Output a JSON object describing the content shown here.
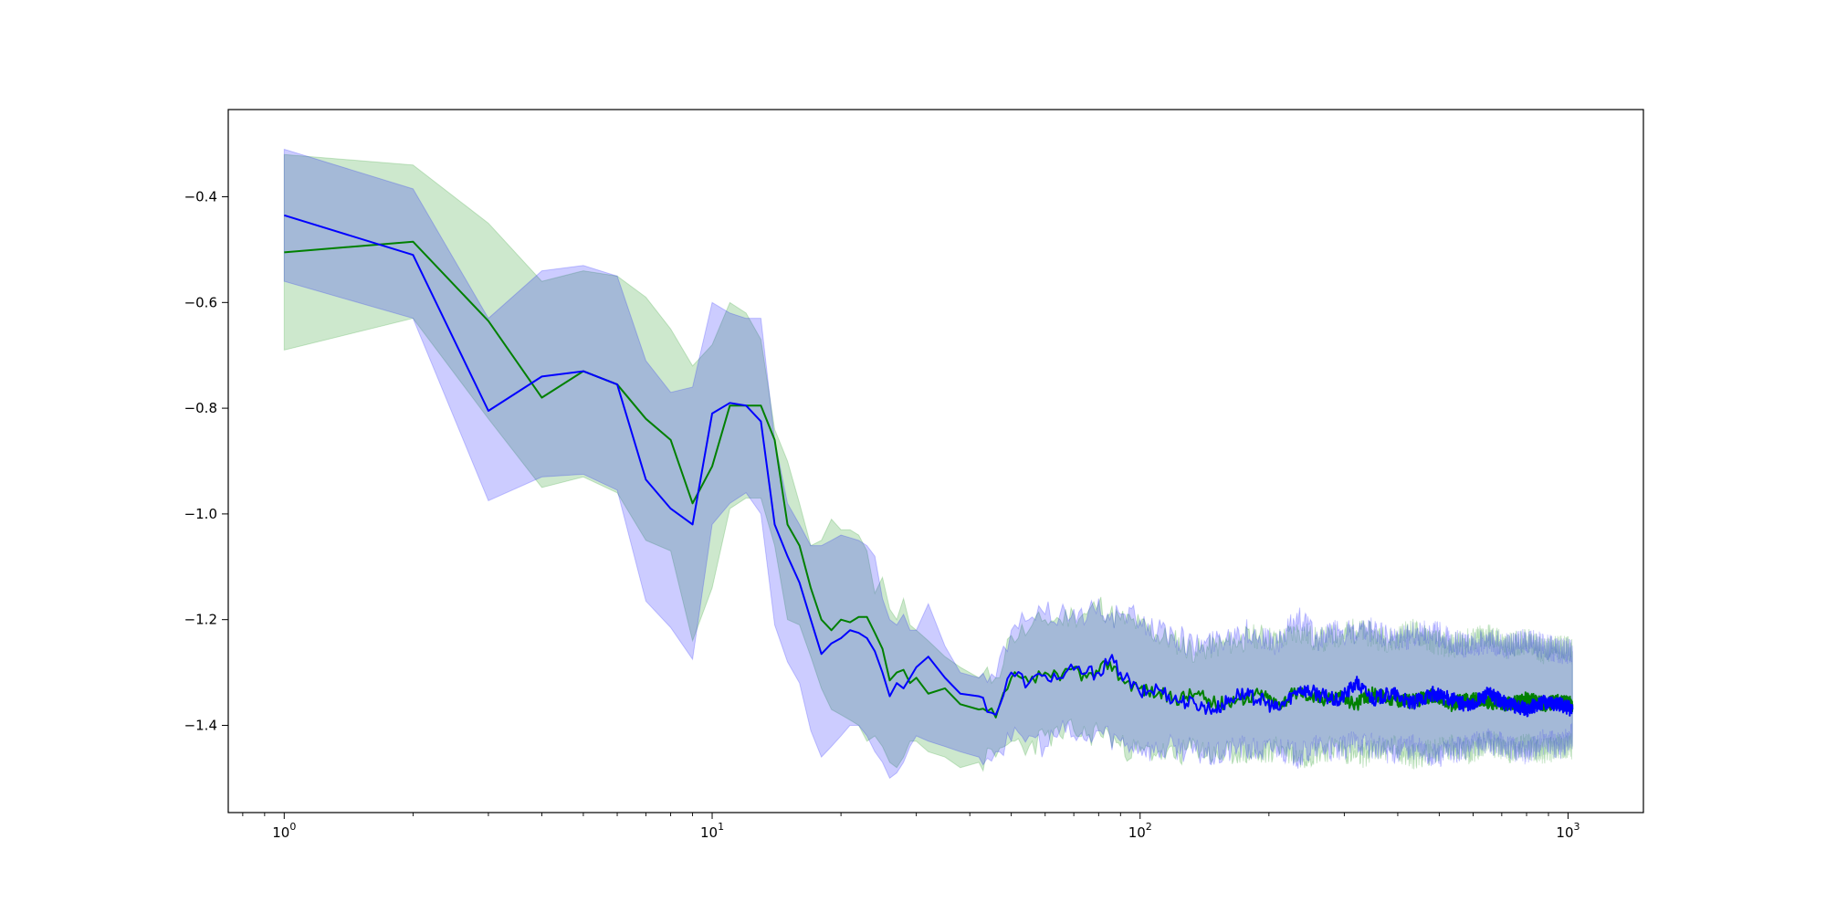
{
  "chart_data": {
    "type": "line",
    "title": "",
    "xlabel": "",
    "ylabel": "",
    "xscale": "log",
    "xlim": [
      0.74,
      1500
    ],
    "ylim": [
      -1.565,
      -0.235
    ],
    "grid": false,
    "legend": "none",
    "x_ticks": [
      {
        "base": "10",
        "exp": "0",
        "value": 1
      },
      {
        "base": "10",
        "exp": "1",
        "value": 10
      },
      {
        "base": "10",
        "exp": "2",
        "value": 100
      },
      {
        "base": "10",
        "exp": "3",
        "value": 1000
      }
    ],
    "y_ticks": [
      {
        "label": "−0.4",
        "value": -0.4
      },
      {
        "label": "−0.6",
        "value": -0.6
      },
      {
        "label": "−0.8",
        "value": -0.8
      },
      {
        "label": "−1.0",
        "value": -1.0
      },
      {
        "label": "−1.2",
        "value": -1.2
      },
      {
        "label": "−1.4",
        "value": -1.4
      }
    ],
    "series": [
      {
        "color": "#008000",
        "band_color": "#2ca02c",
        "band_opacity": 0.24,
        "x": [
          1,
          2,
          3,
          4,
          5,
          6,
          7,
          8,
          9,
          10,
          11,
          12,
          13,
          14,
          15,
          16,
          17,
          18,
          19,
          20,
          21,
          22,
          23,
          24,
          25,
          26,
          27,
          28,
          29,
          30,
          32,
          35,
          38,
          42,
          46,
          50,
          55,
          60,
          65,
          70,
          75,
          80,
          85,
          90,
          100,
          110,
          120,
          135,
          150,
          170,
          190,
          210,
          235,
          260,
          290,
          320,
          350,
          390,
          430,
          480,
          530,
          590,
          650,
          720,
          800,
          880,
          960,
          1024
        ],
        "mean": [
          -0.505,
          -0.485,
          -0.635,
          -0.78,
          -0.73,
          -0.755,
          -0.82,
          -0.86,
          -0.98,
          -0.91,
          -0.795,
          -0.795,
          -0.795,
          -0.86,
          -1.02,
          -1.06,
          -1.14,
          -1.2,
          -1.22,
          -1.2,
          -1.205,
          -1.195,
          -1.195,
          -1.225,
          -1.255,
          -1.315,
          -1.3,
          -1.295,
          -1.32,
          -1.31,
          -1.34,
          -1.33,
          -1.36,
          -1.37,
          -1.385,
          -1.31,
          -1.32,
          -1.3,
          -1.315,
          -1.29,
          -1.31,
          -1.3,
          -1.28,
          -1.31,
          -1.33,
          -1.34,
          -1.35,
          -1.34,
          -1.36,
          -1.35,
          -1.34,
          -1.36,
          -1.335,
          -1.35,
          -1.345,
          -1.36,
          -1.34,
          -1.35,
          -1.355,
          -1.345,
          -1.36,
          -1.35,
          -1.355,
          -1.36,
          -1.35,
          -1.36,
          -1.355,
          -1.36
        ],
        "upper": [
          -0.32,
          -0.34,
          -0.45,
          -0.56,
          -0.54,
          -0.55,
          -0.59,
          -0.65,
          -0.72,
          -0.68,
          -0.6,
          -0.62,
          -0.67,
          -0.84,
          -0.9,
          -0.98,
          -1.06,
          -1.05,
          -1.01,
          -1.03,
          -1.03,
          -1.04,
          -1.07,
          -1.15,
          -1.12,
          -1.18,
          -1.2,
          -1.16,
          -1.21,
          -1.22,
          -1.24,
          -1.27,
          -1.29,
          -1.31,
          -1.31,
          -1.23,
          -1.22,
          -1.2,
          -1.2,
          -1.19,
          -1.19,
          -1.17,
          -1.19,
          -1.2,
          -1.21,
          -1.23,
          -1.24,
          -1.26,
          -1.25,
          -1.24,
          -1.23,
          -1.24,
          -1.22,
          -1.24,
          -1.23,
          -1.22,
          -1.23,
          -1.24,
          -1.22,
          -1.24,
          -1.25,
          -1.24,
          -1.23,
          -1.25,
          -1.24,
          -1.26,
          -1.25,
          -1.26
        ],
        "lower": [
          -0.69,
          -0.63,
          -0.82,
          -0.95,
          -0.93,
          -0.96,
          -1.05,
          -1.07,
          -1.24,
          -1.14,
          -0.99,
          -0.97,
          -0.97,
          -1.06,
          -1.2,
          -1.21,
          -1.27,
          -1.33,
          -1.37,
          -1.38,
          -1.39,
          -1.4,
          -1.43,
          -1.42,
          -1.44,
          -1.47,
          -1.48,
          -1.46,
          -1.43,
          -1.43,
          -1.45,
          -1.46,
          -1.48,
          -1.47,
          -1.46,
          -1.43,
          -1.44,
          -1.42,
          -1.42,
          -1.41,
          -1.42,
          -1.41,
          -1.42,
          -1.44,
          -1.45,
          -1.45,
          -1.46,
          -1.44,
          -1.46,
          -1.45,
          -1.46,
          -1.44,
          -1.46,
          -1.45,
          -1.44,
          -1.46,
          -1.45,
          -1.44,
          -1.46,
          -1.45,
          -1.44,
          -1.45,
          -1.43,
          -1.45,
          -1.44,
          -1.45,
          -1.44,
          -1.44
        ]
      },
      {
        "color": "#0000ff",
        "band_color": "#0000ff",
        "band_opacity": 0.2,
        "x": [
          1,
          2,
          3,
          4,
          5,
          6,
          7,
          8,
          9,
          10,
          11,
          12,
          13,
          14,
          15,
          16,
          17,
          18,
          19,
          20,
          21,
          22,
          23,
          24,
          25,
          26,
          27,
          28,
          29,
          30,
          32,
          35,
          38,
          42,
          46,
          50,
          55,
          60,
          65,
          70,
          75,
          80,
          85,
          90,
          100,
          110,
          120,
          135,
          150,
          170,
          190,
          210,
          235,
          260,
          290,
          320,
          350,
          390,
          430,
          480,
          530,
          590,
          650,
          720,
          800,
          880,
          960,
          1024
        ],
        "mean": [
          -0.435,
          -0.51,
          -0.805,
          -0.74,
          -0.73,
          -0.755,
          -0.935,
          -0.99,
          -1.02,
          -0.81,
          -0.79,
          -0.795,
          -0.825,
          -1.02,
          -1.08,
          -1.13,
          -1.2,
          -1.265,
          -1.245,
          -1.235,
          -1.22,
          -1.225,
          -1.235,
          -1.26,
          -1.3,
          -1.345,
          -1.32,
          -1.33,
          -1.31,
          -1.29,
          -1.27,
          -1.31,
          -1.34,
          -1.345,
          -1.38,
          -1.3,
          -1.32,
          -1.305,
          -1.31,
          -1.295,
          -1.3,
          -1.3,
          -1.275,
          -1.3,
          -1.34,
          -1.33,
          -1.35,
          -1.36,
          -1.37,
          -1.34,
          -1.35,
          -1.37,
          -1.33,
          -1.34,
          -1.355,
          -1.32,
          -1.35,
          -1.34,
          -1.36,
          -1.34,
          -1.35,
          -1.365,
          -1.34,
          -1.36,
          -1.37,
          -1.355,
          -1.36,
          -1.37
        ],
        "upper": [
          -0.31,
          -0.385,
          -0.63,
          -0.54,
          -0.53,
          -0.55,
          -0.71,
          -0.77,
          -0.76,
          -0.6,
          -0.62,
          -0.63,
          -0.63,
          -0.86,
          -0.98,
          -1.02,
          -1.06,
          -1.06,
          -1.05,
          -1.04,
          -1.045,
          -1.05,
          -1.06,
          -1.08,
          -1.16,
          -1.2,
          -1.21,
          -1.19,
          -1.22,
          -1.22,
          -1.17,
          -1.25,
          -1.3,
          -1.31,
          -1.31,
          -1.22,
          -1.2,
          -1.19,
          -1.19,
          -1.18,
          -1.2,
          -1.16,
          -1.2,
          -1.19,
          -1.2,
          -1.22,
          -1.23,
          -1.25,
          -1.24,
          -1.22,
          -1.23,
          -1.25,
          -1.19,
          -1.24,
          -1.22,
          -1.23,
          -1.22,
          -1.24,
          -1.23,
          -1.22,
          -1.24,
          -1.25,
          -1.24,
          -1.25,
          -1.24,
          -1.25,
          -1.26,
          -1.26
        ],
        "lower": [
          -0.56,
          -0.63,
          -0.975,
          -0.93,
          -0.925,
          -0.955,
          -1.165,
          -1.215,
          -1.275,
          -1.02,
          -0.98,
          -0.96,
          -1.0,
          -1.21,
          -1.28,
          -1.32,
          -1.41,
          -1.46,
          -1.44,
          -1.42,
          -1.4,
          -1.4,
          -1.42,
          -1.45,
          -1.47,
          -1.5,
          -1.49,
          -1.47,
          -1.44,
          -1.42,
          -1.43,
          -1.44,
          -1.45,
          -1.46,
          -1.45,
          -1.43,
          -1.42,
          -1.44,
          -1.41,
          -1.42,
          -1.43,
          -1.41,
          -1.42,
          -1.43,
          -1.44,
          -1.45,
          -1.44,
          -1.45,
          -1.46,
          -1.44,
          -1.45,
          -1.44,
          -1.46,
          -1.44,
          -1.45,
          -1.43,
          -1.44,
          -1.45,
          -1.44,
          -1.46,
          -1.45,
          -1.44,
          -1.43,
          -1.44,
          -1.45,
          -1.43,
          -1.44,
          -1.42
        ]
      }
    ]
  }
}
